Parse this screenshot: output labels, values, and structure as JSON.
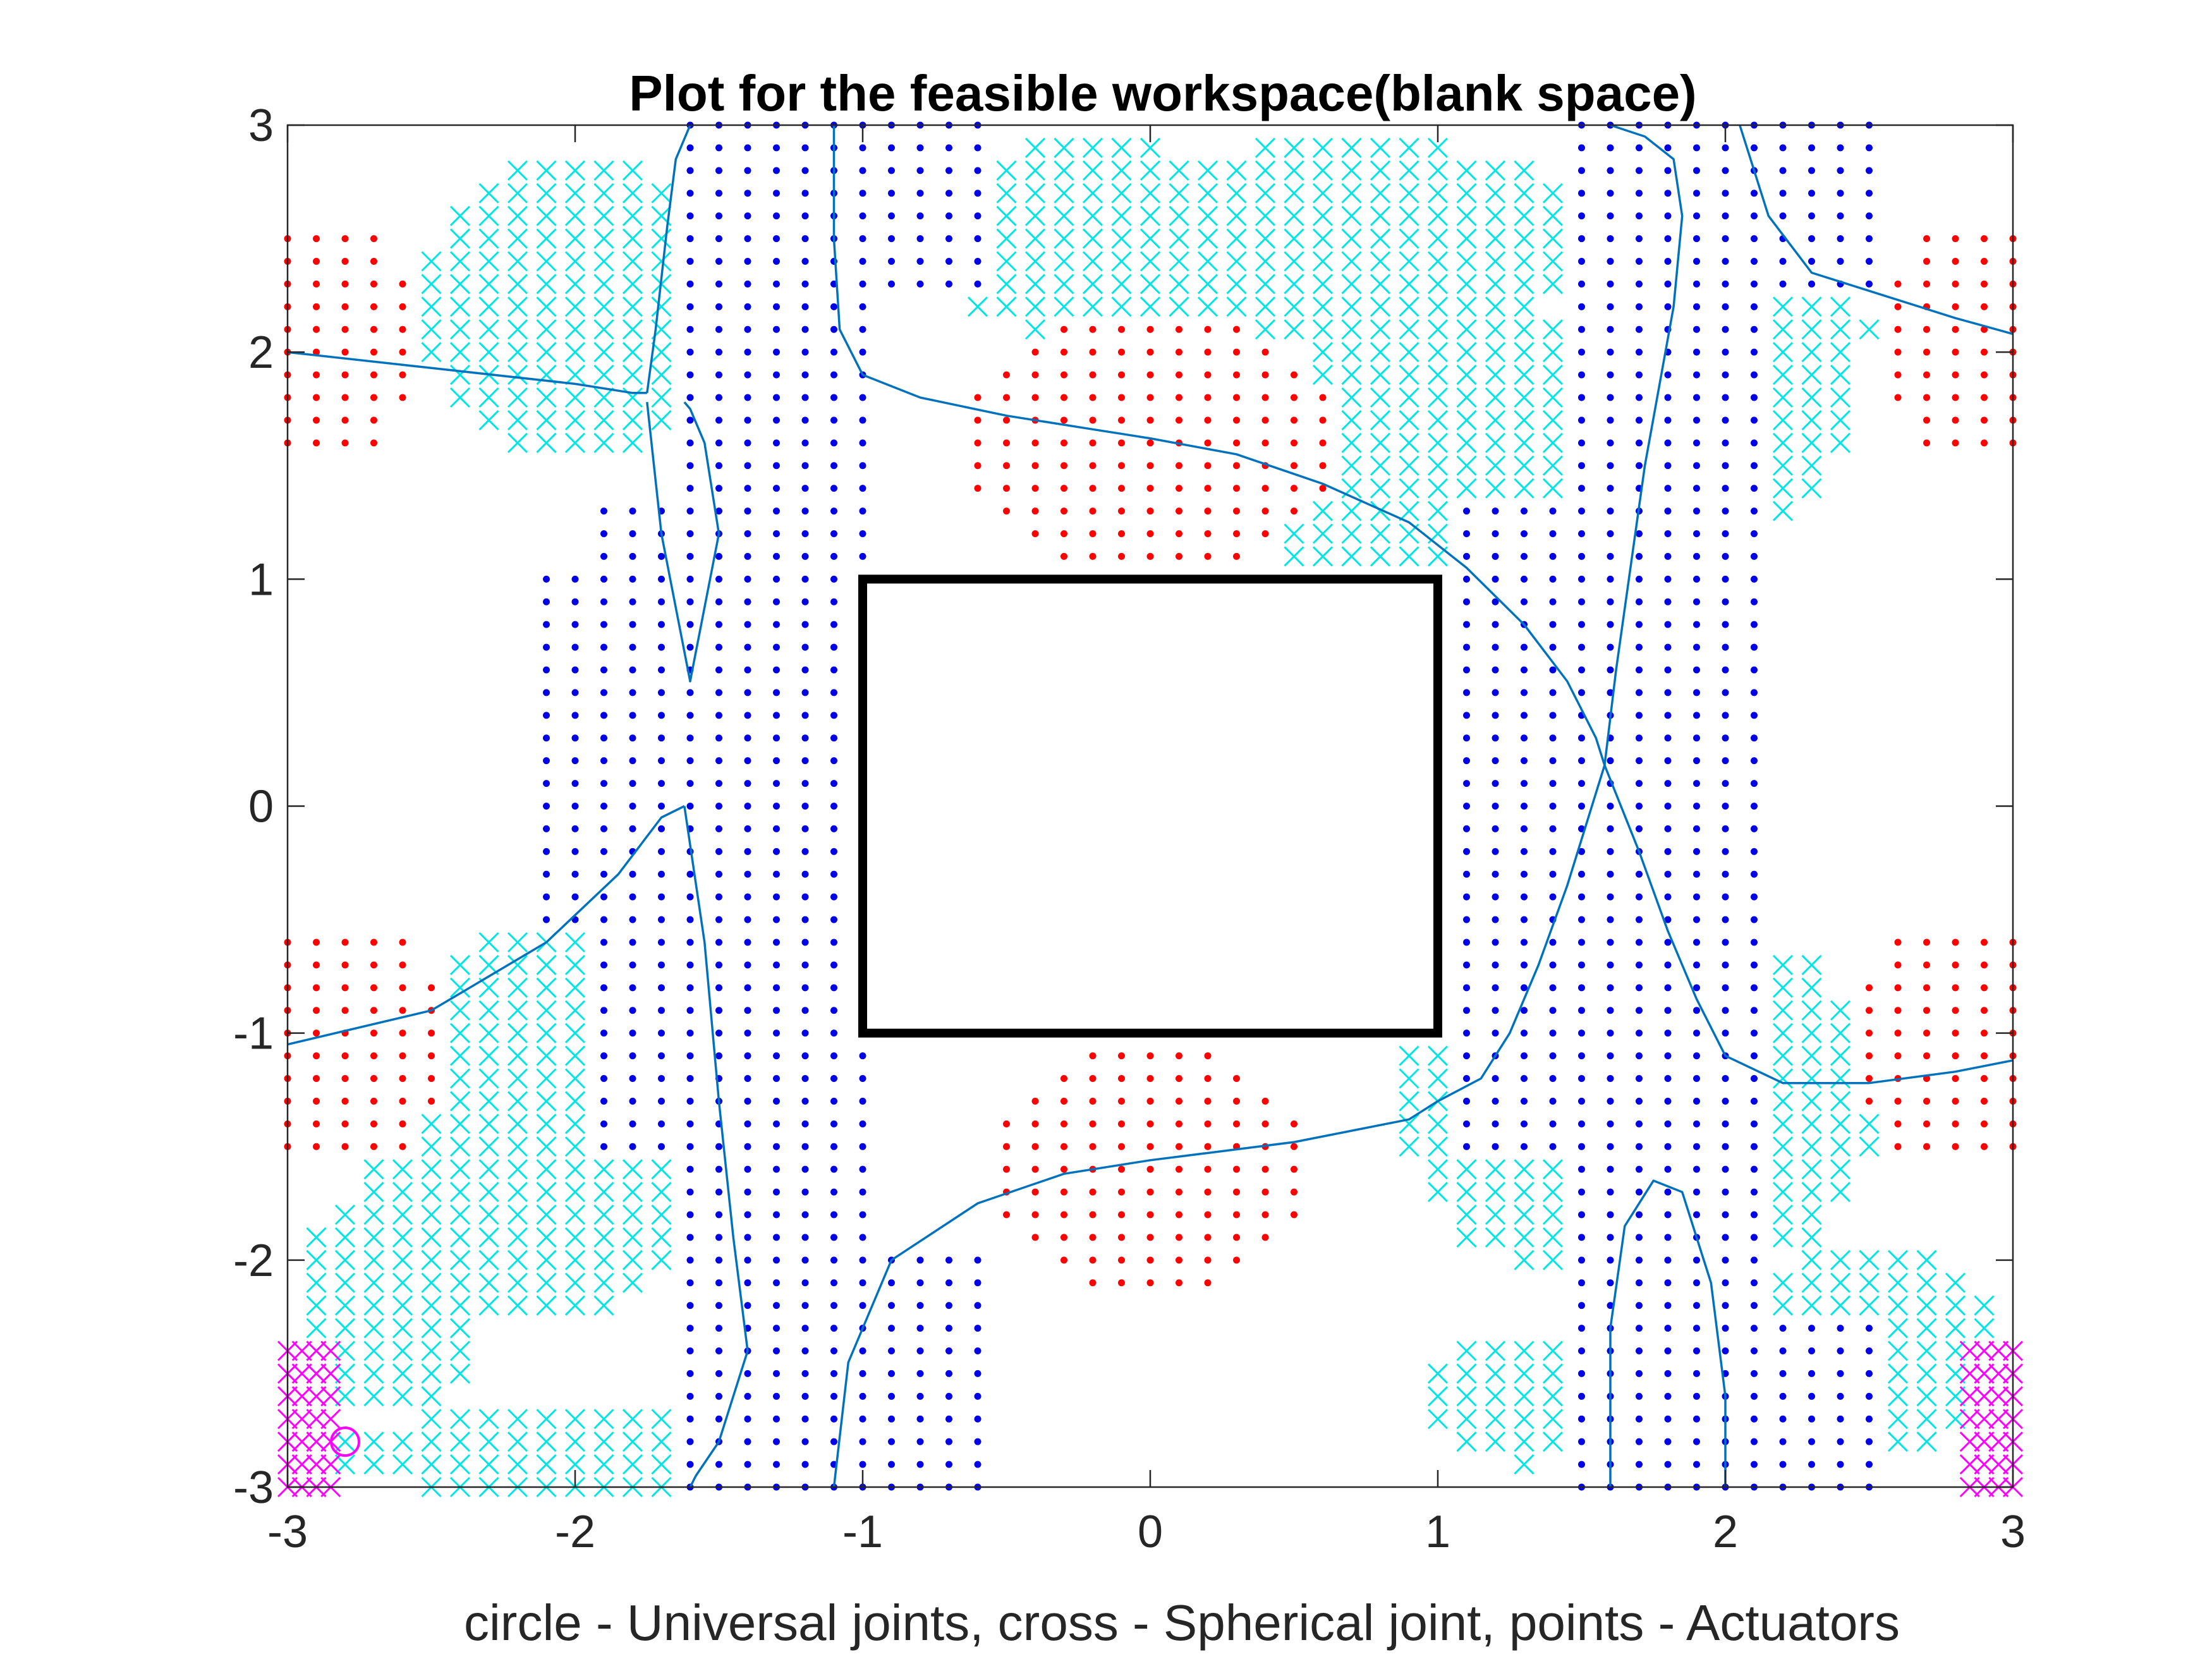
{
  "chart_data": {
    "type": "scatter",
    "title": "Plot for the feasible workspace(blank space)",
    "xlabel": "circle - Universal joints, cross - Spherical joint, points - Actuators",
    "ylabel": "",
    "xlim": [
      -3,
      3
    ],
    "ylim": [
      -3,
      3
    ],
    "xticks": [
      -3,
      -2,
      -1,
      0,
      1,
      2,
      3
    ],
    "yticks": [
      -3,
      -2,
      -1,
      0,
      1,
      2,
      3
    ],
    "xtick_labels": [
      "-3",
      "-2",
      "-1",
      "0",
      "1",
      "2",
      "3"
    ],
    "ytick_labels": [
      "-3",
      "-2",
      "-1",
      "0",
      "1",
      "2",
      "3"
    ],
    "grid": false,
    "colors": {
      "blue_points": "#0000e6",
      "red_points": "#ff0000",
      "cyan_crosses": "#00e5e5",
      "magenta_marks": "#ff00ff",
      "curves": "#0072bd",
      "rectangle": "#000000",
      "axis": "#262626"
    },
    "rectangle": {
      "x": [
        -1,
        1
      ],
      "y": [
        -1,
        1
      ]
    },
    "universal_joint_circle": {
      "x": -2.8,
      "y": -2.8
    },
    "magenta_crosses": [
      {
        "x_values": [
          -3.0,
          -2.95,
          -2.9,
          -2.85
        ],
        "y_range": [
          -3.0,
          -2.35
        ],
        "step": 0.1
      },
      {
        "x_values": [
          2.85,
          2.9,
          2.95,
          3.0
        ],
        "y_range": [
          -3.0,
          -2.35
        ],
        "step": 0.1
      }
    ],
    "step": 0.1,
    "red_point_regions": [
      {
        "cx": -2.85,
        "cy": 2.05,
        "rx": 0.35,
        "ry": 0.5
      },
      {
        "cx": -2.85,
        "cy": -1.05,
        "rx": 0.45,
        "ry": 0.55
      },
      {
        "cx": 2.85,
        "cy": 2.05,
        "rx": 0.35,
        "ry": 0.5
      },
      {
        "cx": 2.85,
        "cy": -1.05,
        "rx": 0.45,
        "ry": 0.55
      },
      {
        "cx": 0.0,
        "cy": 1.6,
        "rx": 0.65,
        "ry": 0.6
      },
      {
        "cx": 0.0,
        "cy": -1.6,
        "rx": 0.55,
        "ry": 0.55
      }
    ],
    "blue_point_regions": [
      {
        "x": [
          -2.1,
          -1.8
        ],
        "y": [
          -0.5,
          1.0
        ]
      },
      {
        "x": [
          -1.9,
          -1.0
        ],
        "y": [
          -1.5,
          1.3
        ]
      },
      {
        "x": [
          -1.6,
          -1.0
        ],
        "y": [
          -3.0,
          3.0
        ]
      },
      {
        "x": [
          -1.0,
          -0.6
        ],
        "y": [
          2.3,
          3.0
        ]
      },
      {
        "x": [
          -0.9,
          -0.6
        ],
        "y": [
          -3.0,
          -2.0
        ]
      },
      {
        "x": [
          1.1,
          2.0
        ],
        "y": [
          -1.5,
          1.3
        ]
      },
      {
        "x": [
          1.5,
          2.1
        ],
        "y": [
          -3.0,
          3.0
        ]
      },
      {
        "x": [
          2.0,
          2.5
        ],
        "y": [
          2.3,
          3.0
        ]
      },
      {
        "x": [
          2.0,
          2.5
        ],
        "y": [
          -3.0,
          -2.3
        ]
      }
    ],
    "cyan_cross_regions": [
      {
        "cx": -2.0,
        "cy": 2.2,
        "rx": 0.55,
        "ry": 0.7
      },
      {
        "cx": -1.65,
        "cy": 2.2,
        "rx": 0.55,
        "ry": 0.55
      },
      {
        "cx": -2.1,
        "cy": -1.4,
        "rx": 0.65,
        "ry": 0.85
      },
      {
        "cx": -2.65,
        "cy": -2.2,
        "rx": 0.35,
        "ry": 0.5
      },
      {
        "cx": -2.1,
        "cy": -2.85,
        "rx": 0.75,
        "ry": 0.2
      },
      {
        "cx": -0.2,
        "cy": 2.5,
        "rx": 0.6,
        "ry": 0.45
      },
      {
        "cx": 0.7,
        "cy": 2.5,
        "rx": 0.85,
        "ry": 0.45
      },
      {
        "cx": 1.1,
        "cy": 1.5,
        "rx": 0.75,
        "ry": 0.7
      },
      {
        "cx": 2.0,
        "cy": 2.1,
        "rx": 0.5,
        "ry": 0.9
      },
      {
        "cx": 1.7,
        "cy": -1.3,
        "rx": 0.85,
        "ry": 0.85
      },
      {
        "cx": 1.3,
        "cy": -2.6,
        "rx": 0.35,
        "ry": 0.3
      },
      {
        "cx": 2.5,
        "cy": -2.4,
        "rx": 0.45,
        "ry": 0.45
      }
    ],
    "curves": [
      {
        "name": "",
        "x": [
          -3.0,
          -2.5,
          -2.0,
          -1.8,
          -1.75
        ],
        "y": [
          2.0,
          1.93,
          1.86,
          1.82,
          1.82
        ]
      },
      {
        "name": "",
        "x": [
          -1.75,
          -1.72,
          -1.68,
          -1.65,
          -1.6
        ],
        "y": [
          1.82,
          2.1,
          2.55,
          2.85,
          3.0
        ]
      },
      {
        "name": "",
        "x": [
          -1.1,
          -1.1,
          -1.08,
          -1.0,
          -0.8,
          -0.5,
          -0.2,
          0.0,
          0.3,
          0.6,
          0.9,
          1.1,
          1.3,
          1.45,
          1.55,
          1.58
        ],
        "y": [
          3.0,
          2.5,
          2.1,
          1.9,
          1.8,
          1.72,
          1.66,
          1.62,
          1.55,
          1.42,
          1.25,
          1.05,
          0.8,
          0.55,
          0.3,
          0.18
        ]
      },
      {
        "name": "",
        "x": [
          1.58,
          1.62,
          1.72,
          1.82,
          1.85,
          1.82,
          1.72,
          1.6,
          1.6
        ],
        "y": [
          0.18,
          0.6,
          1.5,
          2.2,
          2.6,
          2.85,
          2.95,
          3.0,
          3.0
        ]
      },
      {
        "name": "",
        "x": [
          2.05,
          2.15,
          2.3,
          2.55,
          2.8,
          3.0
        ],
        "y": [
          3.0,
          2.6,
          2.35,
          2.25,
          2.15,
          2.08
        ]
      },
      {
        "name": "",
        "x": [
          -1.75,
          -1.7,
          -1.6,
          -1.5,
          -1.55,
          -1.6,
          -1.62
        ],
        "y": [
          1.78,
          1.2,
          0.55,
          1.2,
          1.6,
          1.75,
          1.78
        ]
      },
      {
        "name": "",
        "x": [
          -3.0,
          -2.5,
          -2.1,
          -1.85,
          -1.7,
          -1.62
        ],
        "y": [
          -1.05,
          -0.9,
          -0.6,
          -0.3,
          -0.05,
          0.0
        ]
      },
      {
        "name": "",
        "x": [
          -1.62,
          -1.55,
          -1.5,
          -1.45,
          -1.4,
          -1.5,
          -1.58,
          -1.6
        ],
        "y": [
          0.0,
          -0.6,
          -1.3,
          -1.9,
          -2.4,
          -2.8,
          -2.95,
          -3.0
        ]
      },
      {
        "name": "",
        "x": [
          -1.1,
          -1.05,
          -0.9,
          -0.6,
          -0.3,
          0.0,
          0.5,
          0.9,
          1.0,
          1.15,
          1.25,
          1.35,
          1.45,
          1.58
        ],
        "y": [
          -3.0,
          -2.45,
          -2.0,
          -1.75,
          -1.62,
          -1.56,
          -1.48,
          -1.38,
          -1.3,
          -1.2,
          -1.0,
          -0.7,
          -0.35,
          0.18
        ]
      },
      {
        "name": "",
        "x": [
          1.58,
          1.7,
          1.8,
          1.9,
          2.0,
          2.2,
          2.5,
          2.8,
          3.0
        ],
        "y": [
          0.18,
          -0.2,
          -0.55,
          -0.85,
          -1.1,
          -1.22,
          -1.22,
          -1.17,
          -1.12
        ]
      },
      {
        "name": "",
        "x": [
          1.6,
          1.6,
          1.65,
          1.75,
          1.85,
          1.95,
          2.0,
          2.0
        ],
        "y": [
          -3.0,
          -2.3,
          -1.85,
          -1.65,
          -1.7,
          -2.1,
          -2.6,
          -3.0
        ]
      }
    ]
  }
}
